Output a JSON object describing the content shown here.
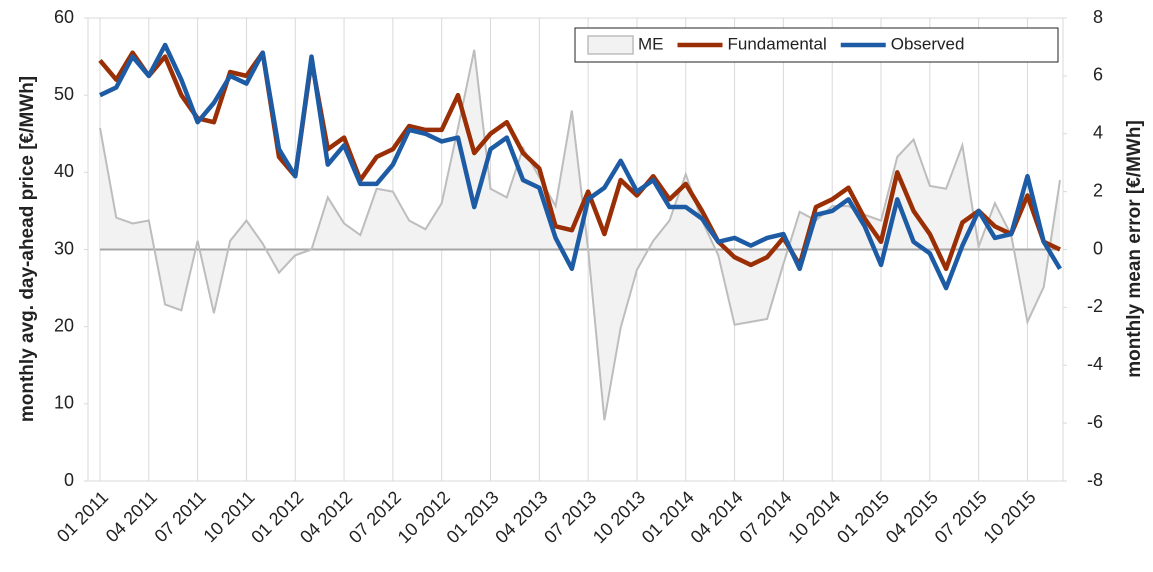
{
  "chart_data": {
    "type": "line",
    "categories": [
      "01 2011",
      null,
      null,
      "04 2011",
      null,
      null,
      "07 2011",
      null,
      null,
      "10 2011",
      null,
      null,
      "01 2012",
      null,
      null,
      "04 2012",
      null,
      null,
      "07 2012",
      null,
      null,
      "10 2012",
      null,
      null,
      "01 2013",
      null,
      null,
      "04 2013",
      null,
      null,
      "07 2013",
      null,
      null,
      "10 2013",
      null,
      null,
      "01 2014",
      null,
      null,
      "04 2014",
      null,
      null,
      "07 2014",
      null,
      null,
      "10 2014",
      null,
      null,
      "01 2015",
      null,
      null,
      "04 2015",
      null,
      null,
      "07 2015",
      null,
      null,
      "10 2015",
      null,
      null
    ],
    "ylabel": "monthly avg. day-ahead price [€/MWh]",
    "y2label": "monthly mean error [€/MWh]",
    "ylim": [
      0,
      60
    ],
    "yticks": [
      0,
      10,
      20,
      30,
      40,
      50,
      60
    ],
    "y2lim": [
      -8,
      8
    ],
    "y2ticks": [
      -8,
      -6,
      -4,
      -2,
      0,
      2,
      4,
      6,
      8
    ],
    "grid": "x",
    "legend": "top-right",
    "series": [
      {
        "name": "ME",
        "color": "#bdbdbd",
        "fill": "#f2f2f2",
        "axis": "y2",
        "style": "area",
        "values": [
          4.2,
          1.1,
          0.9,
          1.0,
          -1.9,
          -2.1,
          0.3,
          -2.2,
          0.3,
          1.0,
          0.2,
          -0.8,
          -0.2,
          0.0,
          1.8,
          0.9,
          0.5,
          2.1,
          2.0,
          1.0,
          0.7,
          1.6,
          4.2,
          6.9,
          2.1,
          1.8,
          3.5,
          2.5,
          1.5,
          4.8,
          0.0,
          -5.9,
          -2.7,
          -0.7,
          0.3,
          1.0,
          2.6,
          1.0,
          -0.2,
          -2.6,
          -2.5,
          -2.4,
          -0.5,
          1.3,
          1.0,
          1.5,
          1.5,
          1.2,
          1.0,
          3.2,
          3.8,
          2.2,
          2.1,
          3.6,
          0.1,
          1.6,
          0.5,
          -2.5,
          -1.3,
          2.4
        ]
      },
      {
        "name": "Fundamental",
        "color": "#9a2f05",
        "values": [
          54.5,
          52,
          55.5,
          52.5,
          55,
          50,
          47,
          46.5,
          53,
          52.5,
          55.5,
          42,
          39.5,
          54.5,
          43,
          44.5,
          39,
          42,
          43,
          46,
          45.5,
          45.5,
          50,
          42.5,
          45,
          46.5,
          42.5,
          40.5,
          33,
          32.5,
          37.5,
          32,
          39,
          37,
          39.5,
          36.5,
          38.5,
          35,
          31,
          29,
          28,
          29,
          31.5,
          28,
          35.5,
          36.5,
          38,
          34,
          31,
          40,
          35,
          32,
          27.5,
          33.5,
          35,
          33,
          32,
          37,
          31,
          30
        ]
      },
      {
        "name": "Observed",
        "color": "#1d5ca4",
        "values": [
          50,
          51,
          55,
          52.5,
          56.5,
          52,
          46.5,
          49,
          52.5,
          51.5,
          55.5,
          43,
          39.5,
          55,
          41,
          43.5,
          38.5,
          38.5,
          41,
          45.5,
          45,
          44,
          44.5,
          35.5,
          43,
          44.5,
          39,
          38,
          31.5,
          27.5,
          36.5,
          38,
          41.5,
          37.5,
          39,
          35.5,
          35.5,
          34,
          31,
          31.5,
          30.5,
          31.5,
          32,
          27.5,
          34.5,
          35,
          36.5,
          33,
          28,
          36.5,
          31,
          29.5,
          25,
          30.5,
          35,
          31.5,
          32,
          39.5,
          31,
          27.5
        ]
      }
    ]
  }
}
